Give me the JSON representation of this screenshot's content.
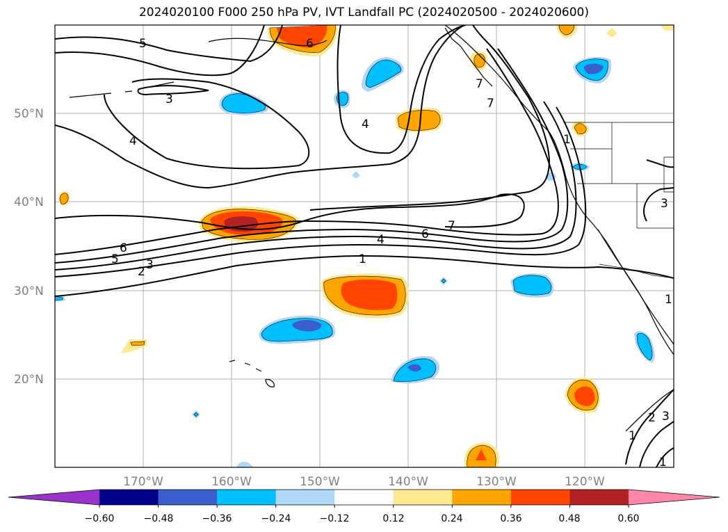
{
  "title": "2024020100 F000 250 hPa PV, IVT Landfall PC (2024020500 - 2024020600)",
  "map": {
    "projection": "plate-carree",
    "lon_range": [
      -180,
      -110
    ],
    "lat_range": [
      10,
      60
    ],
    "gridlines": true,
    "lat_labels": [
      "20°N",
      "30°N",
      "40°N",
      "50°N"
    ],
    "lon_labels": [
      "170°W",
      "160°W",
      "150°W",
      "140°W",
      "130°W",
      "120°W"
    ],
    "contour_labels": [
      "5",
      "3",
      "4",
      "6",
      "4",
      "7",
      "7",
      "1",
      "6",
      "7",
      "4",
      "6",
      "5",
      "3",
      "2",
      "1",
      "3",
      "1",
      "2",
      "3",
      "1",
      "1"
    ]
  },
  "colorbar": {
    "ticks": [
      "−0.60",
      "−0.48",
      "−0.36",
      "−0.24",
      "−0.12",
      "0.12",
      "0.24",
      "0.36",
      "0.48",
      "0.60"
    ],
    "colors": [
      "#9933cc",
      "#00008b",
      "#3a5fcd",
      "#00bfff",
      "#add8f6",
      "#ffffff",
      "#ffe990",
      "#ffa500",
      "#ff4500",
      "#b22222",
      "#ff88aa"
    ],
    "extend": "both"
  }
}
